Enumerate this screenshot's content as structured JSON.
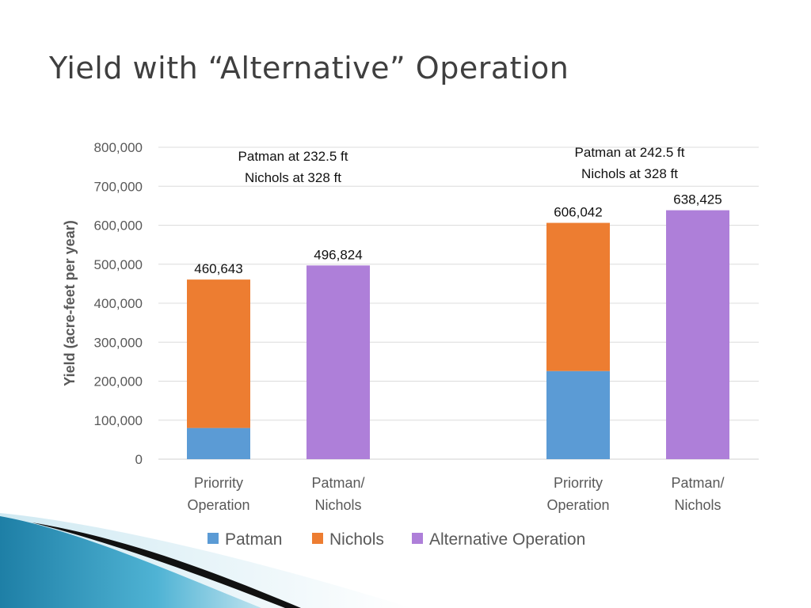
{
  "slide": {
    "title": "Yield with “Alternative” Operation"
  },
  "chart_data": {
    "type": "bar",
    "stacked": true,
    "ylabel": "Yield (acre-feet per year)",
    "ylim": [
      0,
      800000
    ],
    "yticks": [
      0,
      100000,
      200000,
      300000,
      400000,
      500000,
      600000,
      700000,
      800000
    ],
    "ytick_labels": [
      "0",
      "100,000",
      "200,000",
      "300,000",
      "400,000",
      "500,000",
      "600,000",
      "700,000",
      "800,000"
    ],
    "grid": true,
    "legend_position": "bottom",
    "groups": [
      {
        "annotation": [
          "Patman at 232.5 ft",
          "Nichols at 328 ft"
        ],
        "categories": [
          {
            "label": [
              "Priorrity",
              "Operation"
            ],
            "total": 460643,
            "total_label": "460,643",
            "segments": [
              {
                "series": "Patman",
                "value": 80000
              },
              {
                "series": "Nichols",
                "value": 380643
              }
            ]
          },
          {
            "label": [
              "Patman/",
              "Nichols"
            ],
            "total": 496824,
            "total_label": "496,824",
            "segments": [
              {
                "series": "Alternative Operation",
                "value": 496824
              }
            ]
          }
        ]
      },
      {
        "annotation": [
          "Patman at 242.5 ft",
          "Nichols at 328 ft"
        ],
        "categories": [
          {
            "label": [
              "Priorrity",
              "Operation"
            ],
            "total": 606042,
            "total_label": "606,042",
            "segments": [
              {
                "series": "Patman",
                "value": 226000
              },
              {
                "series": "Nichols",
                "value": 380042
              }
            ]
          },
          {
            "label": [
              "Patman/",
              "Nichols"
            ],
            "total": 638425,
            "total_label": "638,425",
            "segments": [
              {
                "series": "Alternative Operation",
                "value": 638425
              }
            ]
          }
        ]
      }
    ],
    "series": [
      {
        "name": "Patman",
        "color": "#5b9bd5"
      },
      {
        "name": "Nichols",
        "color": "#ed7d31"
      },
      {
        "name": "Alternative Operation",
        "color": "#ae7fd9"
      }
    ]
  }
}
